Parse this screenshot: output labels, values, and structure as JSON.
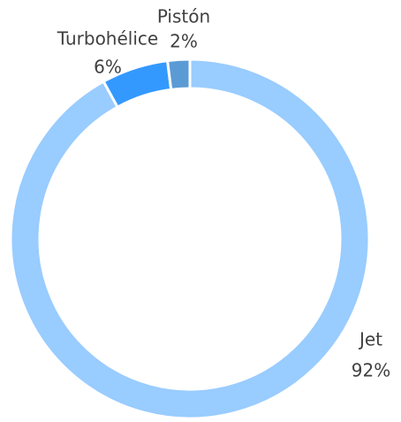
{
  "chart_data": {
    "type": "pie",
    "donut": true,
    "categories": [
      "Jet",
      "Turbohélice",
      "Pistón"
    ],
    "values": [
      92,
      6,
      2
    ],
    "value_labels": [
      "92%",
      "6%",
      "2%"
    ],
    "colors": [
      "#99ccff",
      "#3399ff",
      "#5b9bd5"
    ]
  }
}
